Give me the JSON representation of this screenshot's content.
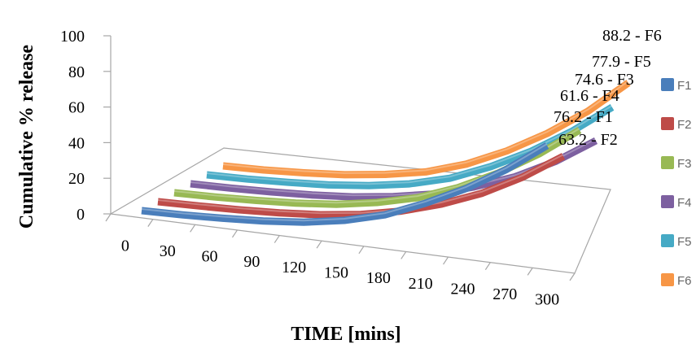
{
  "chart_data": {
    "type": "line",
    "style": "3d",
    "title": "",
    "xlabel": "TIME [mins]",
    "ylabel": "Cumulative % release",
    "x": [
      0,
      30,
      60,
      90,
      120,
      150,
      180,
      210,
      240,
      270,
      300
    ],
    "x_tick_labels": [
      "0",
      "30",
      "60",
      "90",
      "120",
      "150",
      "180",
      "210",
      "240",
      "270",
      "300"
    ],
    "y_tick_labels": [
      "0",
      "20",
      "40",
      "60",
      "80",
      "100"
    ],
    "ylim": [
      0,
      100
    ],
    "grid": false,
    "legend_position": "right",
    "series": [
      {
        "name": "F1",
        "color": "#4a7ebb",
        "end_label": "76.2 - F1",
        "values": [
          0,
          0.5,
          1.5,
          3,
          5.5,
          10,
          17,
          28,
          41,
          57,
          76.2
        ]
      },
      {
        "name": "F2",
        "color": "#be4b48",
        "end_label": "63.2 - F2",
        "values": [
          0,
          0.5,
          1.2,
          2.5,
          4.5,
          8,
          13.5,
          21.5,
          32,
          46,
          63.2
        ]
      },
      {
        "name": "F3",
        "color": "#98b954",
        "end_label": "74.6 - F3",
        "values": [
          0,
          0.5,
          1.5,
          3,
          5.5,
          10,
          16.5,
          26.5,
          39.5,
          55.5,
          74.6
        ]
      },
      {
        "name": "F4",
        "color": "#7d60a0",
        "end_label": "61.6 - F4",
        "values": [
          0,
          0.4,
          1.2,
          2.5,
          4.5,
          8,
          13,
          21,
          31,
          44.5,
          61.6
        ]
      },
      {
        "name": "F5",
        "color": "#46aac5",
        "end_label": "77.9 - F5",
        "values": [
          0,
          0.5,
          1.6,
          3.2,
          6,
          10.5,
          17.5,
          28.5,
          42,
          58.5,
          77.9
        ]
      },
      {
        "name": "F6",
        "color": "#f79646",
        "end_label": "88.2 - F6",
        "values": [
          0,
          0.6,
          2,
          4,
          7.5,
          12.5,
          21,
          33,
          48,
          66,
          88.2
        ]
      }
    ]
  }
}
